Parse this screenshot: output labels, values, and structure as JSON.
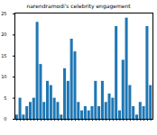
{
  "chart_data": {
    "type": "bar",
    "title": "narendramodi's celebrity engagement",
    "categories": [
      null,
      null,
      null,
      null,
      null,
      null,
      null,
      null,
      null,
      null,
      null,
      null,
      null,
      null,
      null,
      null,
      null,
      null,
      null,
      null,
      null,
      null,
      null,
      null,
      null,
      null,
      null,
      null,
      null,
      null,
      null,
      null,
      null,
      null,
      null,
      null,
      null,
      null,
      null,
      null
    ],
    "values": [
      1,
      5,
      1,
      3,
      4,
      5,
      23,
      13,
      4,
      9,
      8,
      5,
      4,
      1,
      12,
      9,
      19,
      16,
      4,
      2,
      3,
      2,
      3,
      9,
      3,
      9,
      4,
      6,
      5,
      22,
      2,
      14,
      24,
      8,
      3,
      1,
      4,
      3,
      22,
      8
    ],
    "color": "#1f77b4",
    "ylim": [
      0,
      25.2
    ],
    "yticks": [
      0,
      5,
      10,
      15,
      20,
      25
    ]
  }
}
